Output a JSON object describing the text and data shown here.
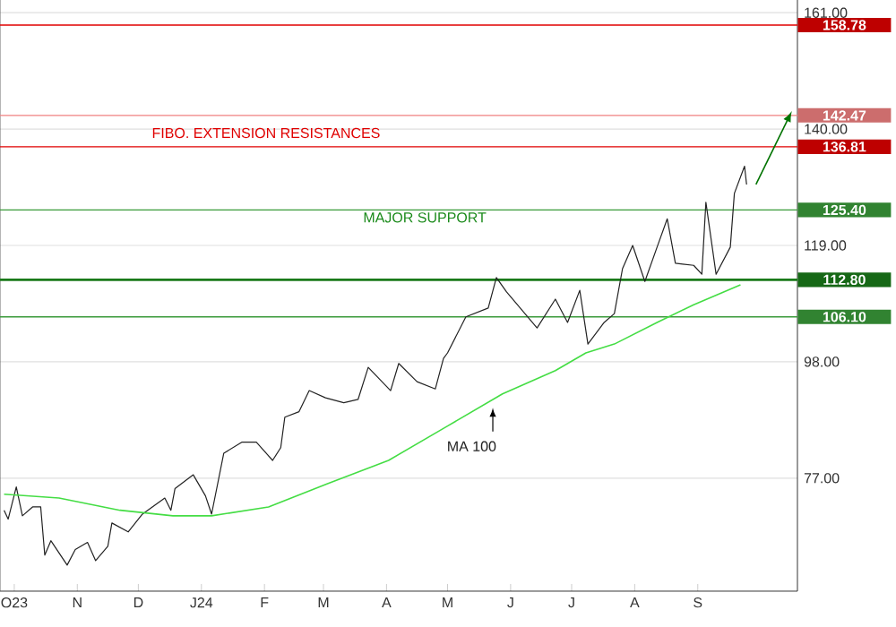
{
  "chart_data": {
    "type": "line",
    "xlim": [
      "2023-09-24",
      "2024-10-20"
    ],
    "ylim": [
      56.6,
      163.3
    ],
    "xticks": [
      {
        "value": "2023-10-01",
        "label": "O23"
      },
      {
        "value": "2023-11-01",
        "label": "N"
      },
      {
        "value": "2023-12-01",
        "label": "D"
      },
      {
        "value": "2024-01-01",
        "label": "J24"
      },
      {
        "value": "2024-02-01",
        "label": "F"
      },
      {
        "value": "2024-03-01",
        "label": "M"
      },
      {
        "value": "2024-04-01",
        "label": "A"
      },
      {
        "value": "2024-05-01",
        "label": "M"
      },
      {
        "value": "2024-06-01",
        "label": "J"
      },
      {
        "value": "2024-07-01",
        "label": "J"
      },
      {
        "value": "2024-08-01",
        "label": "A"
      },
      {
        "value": "2024-09-01",
        "label": "S"
      }
    ],
    "yticks": [
      {
        "value": 77,
        "label": "77.00"
      },
      {
        "value": 98,
        "label": "98.00"
      },
      {
        "value": 119,
        "label": "119.00"
      },
      {
        "value": 140,
        "label": "140.00"
      },
      {
        "value": 161,
        "label": "161.00"
      }
    ],
    "grid": "y",
    "marker": "none",
    "series": [
      {
        "color": "#222222",
        "x": [
          "2023-09-26",
          "2023-09-28",
          "2023-10-02",
          "2023-10-05",
          "2023-10-10",
          "2023-10-14",
          "2023-10-16",
          "2023-10-19",
          "2023-10-27",
          "2023-10-31",
          "2023-11-06",
          "2023-11-10",
          "2023-11-16",
          "2023-11-18",
          "2023-11-26",
          "2023-12-03",
          "2023-12-14",
          "2023-12-17",
          "2023-12-19",
          "2023-12-28",
          "2024-01-03",
          "2024-01-06",
          "2024-01-12",
          "2024-01-21",
          "2024-01-28",
          "2024-02-05",
          "2024-02-09",
          "2024-02-11",
          "2024-02-18",
          "2024-02-23",
          "2024-03-02",
          "2024-03-11",
          "2024-03-18",
          "2024-03-23",
          "2024-04-03",
          "2024-04-07",
          "2024-04-16",
          "2024-04-25",
          "2024-04-29",
          "2024-05-01",
          "2024-05-10",
          "2024-05-21",
          "2024-05-25",
          "2024-05-30",
          "2024-06-14",
          "2024-06-23",
          "2024-06-29",
          "2024-07-05",
          "2024-07-09",
          "2024-07-17",
          "2024-07-22",
          "2024-07-26",
          "2024-07-31",
          "2024-08-06",
          "2024-08-12",
          "2024-08-17",
          "2024-08-21",
          "2024-08-30",
          "2024-09-03",
          "2024-09-05",
          "2024-09-10",
          "2024-09-17",
          "2024-09-19",
          "2024-09-24",
          "2024-09-25"
        ],
        "values": [
          71.2,
          69.6,
          75.4,
          70.2,
          71.8,
          71.8,
          63.1,
          65.7,
          61.3,
          64.1,
          65.4,
          62.1,
          64.7,
          68.9,
          67.3,
          70.5,
          73.4,
          71.2,
          75.1,
          77.6,
          73.8,
          70.5,
          81.5,
          83.5,
          83.5,
          80.2,
          82.5,
          88.0,
          89.0,
          92.8,
          91.5,
          90.6,
          91.2,
          97.0,
          92.8,
          97.7,
          94.4,
          93.1,
          98.6,
          99.6,
          106.1,
          107.7,
          113.2,
          110.6,
          104.1,
          109.3,
          105.1,
          110.9,
          101.2,
          105.1,
          106.7,
          114.8,
          119.0,
          112.5,
          118.7,
          123.8,
          115.8,
          115.4,
          113.8,
          126.8,
          113.8,
          118.7,
          128.4,
          133.3,
          130.0
        ]
      },
      {
        "color": "#44dd44",
        "x": [
          "2023-09-26",
          "2023-10-23",
          "2023-11-22",
          "2023-12-18",
          "2024-01-06",
          "2024-02-03",
          "2024-03-03",
          "2024-04-02",
          "2024-05-01",
          "2024-05-28",
          "2024-06-23",
          "2024-07-08",
          "2024-07-22",
          "2024-08-12",
          "2024-08-30",
          "2024-09-22"
        ],
        "values": [
          74.1,
          73.4,
          71.2,
          70.2,
          70.2,
          71.8,
          76.0,
          80.2,
          86.4,
          92.2,
          96.4,
          99.6,
          101.2,
          105.1,
          108.3,
          111.9
        ]
      }
    ],
    "ref_lines": [
      {
        "axis": "y",
        "value": 158.78,
        "label": "158.78",
        "color": "#e00000"
      },
      {
        "axis": "y",
        "value": 142.47,
        "label": "142.47",
        "color": "#f08080"
      },
      {
        "axis": "y",
        "value": 136.81,
        "label": "136.81",
        "color": "#e00000"
      },
      {
        "axis": "y",
        "value": 125.4,
        "label": "125.40",
        "color": "#3a9a3a"
      },
      {
        "axis": "y",
        "value": 112.8,
        "label": "112.80",
        "color": "#1a7a1a"
      },
      {
        "axis": "y",
        "value": 106.1,
        "label": "106.10",
        "color": "#3a9a3a"
      }
    ],
    "annotations": [
      "FIBO. EXTENSION RESISTANCES",
      "MAJOR SUPPORT",
      "MA 100"
    ]
  }
}
